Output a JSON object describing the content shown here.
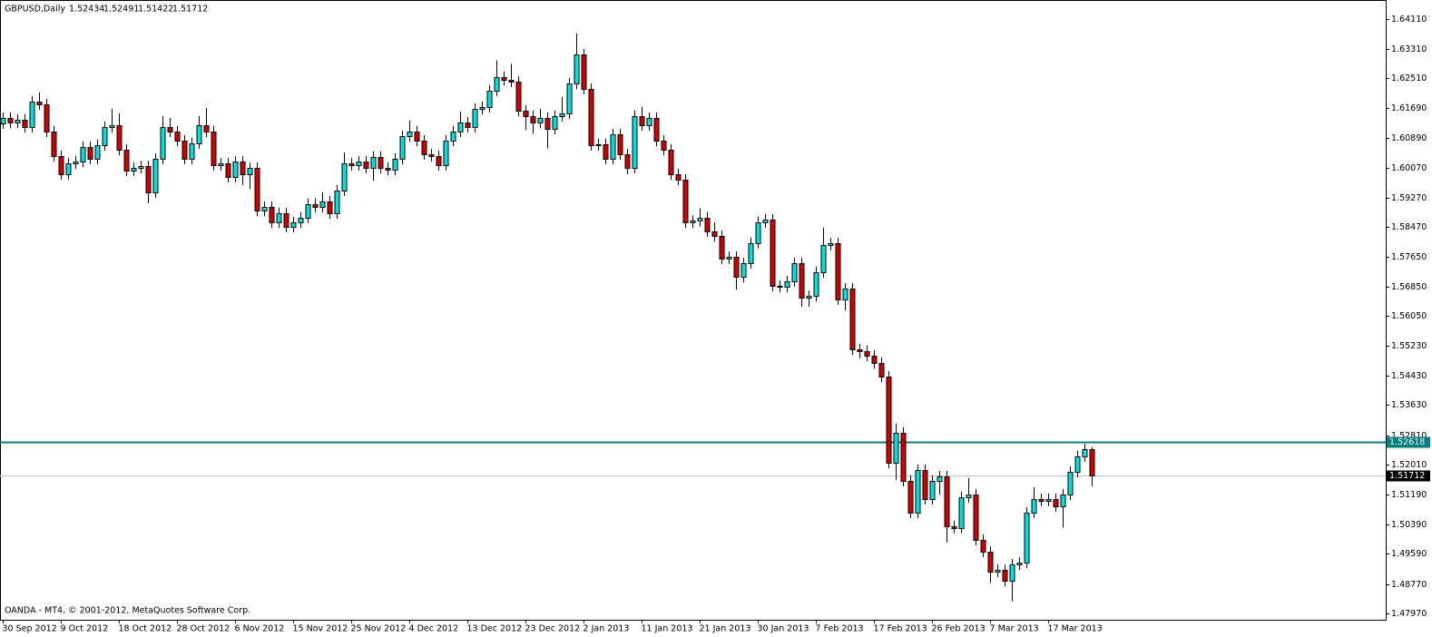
{
  "chart_data": {
    "type": "candlestick",
    "title": "GBPUSD,Daily",
    "watermark": "OANDA - MT4, © 2001-2012, MetaQuotes Software Corp.",
    "up_color": "#00e0e0",
    "down_color": "#d40000",
    "ylim": [
      1.478,
      1.6463
    ],
    "yticks": [
      {
        "value": 1.6411,
        "label": "1.64110"
      },
      {
        "value": 1.6331,
        "label": "1.63310"
      },
      {
        "value": 1.6251,
        "label": "1.62510"
      },
      {
        "value": 1.6169,
        "label": "1.61690"
      },
      {
        "value": 1.6089,
        "label": "1.60890"
      },
      {
        "value": 1.6007,
        "label": "1.60070"
      },
      {
        "value": 1.5927,
        "label": "1.59270"
      },
      {
        "value": 1.5847,
        "label": "1.58470"
      },
      {
        "value": 1.5765,
        "label": "1.57650"
      },
      {
        "value": 1.5685,
        "label": "1.56850"
      },
      {
        "value": 1.5605,
        "label": "1.56050"
      },
      {
        "value": 1.5523,
        "label": "1.55230"
      },
      {
        "value": 1.5443,
        "label": "1.54430"
      },
      {
        "value": 1.5363,
        "label": "1.53630"
      },
      {
        "value": 1.5281,
        "label": "1.52810"
      },
      {
        "value": 1.5201,
        "label": "1.52010"
      },
      {
        "value": 1.5119,
        "label": "1.51190"
      },
      {
        "value": 1.5039,
        "label": "1.50390"
      },
      {
        "value": 1.4959,
        "label": "1.49590"
      },
      {
        "value": 1.4877,
        "label": "1.48770"
      },
      {
        "value": 1.4797,
        "label": "1.47970"
      }
    ],
    "level": {
      "value": 1.52618,
      "color": "#008080"
    },
    "categories": [
      "30 Sep 2012",
      null,
      null,
      null,
      null,
      null,
      null,
      null,
      "9 Oct 2012",
      null,
      null,
      null,
      null,
      null,
      null,
      null,
      "18 Oct 2012",
      null,
      null,
      null,
      null,
      null,
      null,
      null,
      "28 Oct 2012",
      null,
      null,
      null,
      null,
      null,
      null,
      null,
      "6 Nov 2012",
      null,
      null,
      null,
      null,
      null,
      null,
      null,
      "15 Nov 2012",
      null,
      null,
      null,
      null,
      null,
      null,
      null,
      "25 Nov 2012",
      null,
      null,
      null,
      null,
      null,
      null,
      null,
      "4 Dec 2012",
      null,
      null,
      null,
      null,
      null,
      null,
      null,
      "13 Dec 2012",
      null,
      null,
      null,
      null,
      null,
      null,
      null,
      "23 Dec 2012",
      null,
      null,
      null,
      null,
      null,
      null,
      null,
      "2 Jan 2013",
      null,
      null,
      null,
      null,
      null,
      null,
      null,
      "11 Jan 2013",
      null,
      null,
      null,
      null,
      null,
      null,
      null,
      "21 Jan 2013",
      null,
      null,
      null,
      null,
      null,
      null,
      null,
      "30 Jan 2013",
      null,
      null,
      null,
      null,
      null,
      null,
      null,
      "7 Feb 2013",
      null,
      null,
      null,
      null,
      null,
      null,
      null,
      "17 Feb 2013",
      null,
      null,
      null,
      null,
      null,
      null,
      null,
      "26 Feb 2013",
      null,
      null,
      null,
      null,
      null,
      null,
      null,
      "7 Mar 2013",
      null,
      null,
      null,
      null,
      null,
      null,
      null,
      "17 Mar 2013",
      null,
      null,
      null,
      null,
      null,
      null
    ],
    "ohlc": [
      [
        1.6128,
        1.6158,
        1.6113,
        1.6143
      ],
      [
        1.6143,
        1.6158,
        1.6115,
        1.613
      ],
      [
        1.613,
        1.6153,
        1.6115,
        1.6138
      ],
      [
        1.6138,
        1.6153,
        1.6103,
        1.6118
      ],
      [
        1.6118,
        1.6202,
        1.6103,
        1.6187
      ],
      [
        1.6187,
        1.6212,
        1.6165,
        1.618
      ],
      [
        1.618,
        1.6195,
        1.6091,
        1.6106
      ],
      [
        1.6106,
        1.6121,
        1.6024,
        1.6039
      ],
      [
        1.6039,
        1.6054,
        1.5975,
        1.599
      ],
      [
        1.599,
        1.6034,
        1.5975,
        1.6019
      ],
      [
        1.6019,
        1.6039,
        1.6004,
        1.6024
      ],
      [
        1.6024,
        1.6079,
        1.6009,
        1.6064
      ],
      [
        1.6064,
        1.6079,
        1.6017,
        1.6032
      ],
      [
        1.6032,
        1.6084,
        1.6017,
        1.6069
      ],
      [
        1.6069,
        1.6133,
        1.6054,
        1.6118
      ],
      [
        1.6118,
        1.6168,
        1.6103,
        1.6123
      ],
      [
        1.6123,
        1.6155,
        1.6041,
        1.6056
      ],
      [
        1.6056,
        1.6071,
        1.5985,
        1.6
      ],
      [
        1.6,
        1.6022,
        1.5985,
        1.6007
      ],
      [
        1.6007,
        1.6026,
        1.5992,
        1.6011
      ],
      [
        1.6011,
        1.6026,
        1.5911,
        1.5941
      ],
      [
        1.5941,
        1.6047,
        1.5926,
        1.6032
      ],
      [
        1.6032,
        1.6148,
        1.6017,
        1.6118
      ],
      [
        1.6118,
        1.6143,
        1.6091,
        1.6106
      ],
      [
        1.6106,
        1.6121,
        1.6066,
        1.6081
      ],
      [
        1.6081,
        1.6096,
        1.6017,
        1.6032
      ],
      [
        1.6032,
        1.6089,
        1.6017,
        1.6074
      ],
      [
        1.6074,
        1.6148,
        1.6059,
        1.6123
      ],
      [
        1.6123,
        1.617,
        1.6091,
        1.6106
      ],
      [
        1.6106,
        1.6121,
        1.6,
        1.6015
      ],
      [
        1.6015,
        1.6034,
        1.6,
        1.6019
      ],
      [
        1.6019,
        1.6034,
        1.5968,
        1.5983
      ],
      [
        1.5983,
        1.6039,
        1.5968,
        1.6024
      ],
      [
        1.6024,
        1.6039,
        1.596,
        1.599
      ],
      [
        1.599,
        1.6022,
        1.595,
        1.6007
      ],
      [
        1.6007,
        1.6022,
        1.5876,
        1.5891
      ],
      [
        1.5891,
        1.5916,
        1.5876,
        1.5901
      ],
      [
        1.5901,
        1.5916,
        1.5844,
        1.5859
      ],
      [
        1.5859,
        1.5899,
        1.5844,
        1.5884
      ],
      [
        1.5884,
        1.5899,
        1.5832,
        1.5847
      ],
      [
        1.5847,
        1.5874,
        1.5832,
        1.5859
      ],
      [
        1.5859,
        1.5887,
        1.5844,
        1.5872
      ],
      [
        1.5872,
        1.5924,
        1.5857,
        1.5909
      ],
      [
        1.5909,
        1.5924,
        1.5886,
        1.5901
      ],
      [
        1.5901,
        1.5941,
        1.5886,
        1.5916
      ],
      [
        1.5916,
        1.5931,
        1.5869,
        1.5884
      ],
      [
        1.5884,
        1.5961,
        1.5869,
        1.5946
      ],
      [
        1.5946,
        1.6049,
        1.5931,
        1.6019
      ],
      [
        1.6019,
        1.6034,
        1.6,
        1.6015
      ],
      [
        1.6015,
        1.6039,
        1.6,
        1.6024
      ],
      [
        1.6024,
        1.6039,
        1.5992,
        1.6007
      ],
      [
        1.6007,
        1.6052,
        1.5972,
        1.6037
      ],
      [
        1.6037,
        1.6052,
        1.5992,
        1.6007
      ],
      [
        1.6007,
        1.6022,
        1.5987,
        1.6002
      ],
      [
        1.6002,
        1.6047,
        1.5987,
        1.6032
      ],
      [
        1.6032,
        1.6108,
        1.6017,
        1.6093
      ],
      [
        1.6093,
        1.6136,
        1.6078,
        1.6106
      ],
      [
        1.6106,
        1.6121,
        1.6066,
        1.6081
      ],
      [
        1.6081,
        1.6096,
        1.6029,
        1.6044
      ],
      [
        1.6044,
        1.6059,
        1.6024,
        1.6039
      ],
      [
        1.6039,
        1.6054,
        1.6,
        1.6015
      ],
      [
        1.6015,
        1.6096,
        1.6,
        1.6081
      ],
      [
        1.6081,
        1.6121,
        1.6066,
        1.6106
      ],
      [
        1.6106,
        1.616,
        1.6091,
        1.613
      ],
      [
        1.613,
        1.6145,
        1.6103,
        1.6118
      ],
      [
        1.6118,
        1.6182,
        1.6103,
        1.6167
      ],
      [
        1.6167,
        1.6187,
        1.6152,
        1.6172
      ],
      [
        1.6172,
        1.6232,
        1.6157,
        1.6217
      ],
      [
        1.6217,
        1.6299,
        1.6202,
        1.6254
      ],
      [
        1.6254,
        1.6269,
        1.6231,
        1.6246
      ],
      [
        1.6246,
        1.629,
        1.6226,
        1.6241
      ],
      [
        1.6241,
        1.6256,
        1.6147,
        1.6162
      ],
      [
        1.6162,
        1.6177,
        1.611,
        1.6148
      ],
      [
        1.6148,
        1.6163,
        1.61,
        1.613
      ],
      [
        1.613,
        1.6168,
        1.6115,
        1.6143
      ],
      [
        1.6143,
        1.6158,
        1.606,
        1.6113
      ],
      [
        1.6113,
        1.6163,
        1.6098,
        1.6148
      ],
      [
        1.6148,
        1.62,
        1.6133,
        1.6155
      ],
      [
        1.6155,
        1.6251,
        1.614,
        1.6236
      ],
      [
        1.6236,
        1.6372,
        1.6221,
        1.6315
      ],
      [
        1.6315,
        1.633,
        1.6207,
        1.6222
      ],
      [
        1.6222,
        1.6237,
        1.6054,
        1.6069
      ],
      [
        1.6069,
        1.6087,
        1.6054,
        1.6072
      ],
      [
        1.6072,
        1.6087,
        1.6017,
        1.6032
      ],
      [
        1.6032,
        1.6113,
        1.6017,
        1.6098
      ],
      [
        1.6098,
        1.6113,
        1.6029,
        1.6044
      ],
      [
        1.6044,
        1.6059,
        1.599,
        1.6007
      ],
      [
        1.6007,
        1.6163,
        1.5992,
        1.6148
      ],
      [
        1.6148,
        1.6173,
        1.6108,
        1.6123
      ],
      [
        1.6123,
        1.6158,
        1.6108,
        1.6143
      ],
      [
        1.6143,
        1.6158,
        1.6066,
        1.6081
      ],
      [
        1.6081,
        1.6096,
        1.6041,
        1.6056
      ],
      [
        1.6056,
        1.6071,
        1.5975,
        1.599
      ],
      [
        1.599,
        1.6005,
        1.596,
        1.5975
      ],
      [
        1.5975,
        1.599,
        1.5844,
        1.5859
      ],
      [
        1.5859,
        1.5878,
        1.5844,
        1.5863
      ],
      [
        1.5863,
        1.5897,
        1.5848,
        1.5872
      ],
      [
        1.5872,
        1.5887,
        1.582,
        1.5835
      ],
      [
        1.5835,
        1.586,
        1.5807,
        1.5822
      ],
      [
        1.5822,
        1.5837,
        1.5746,
        1.5761
      ],
      [
        1.5761,
        1.578,
        1.5746,
        1.5765
      ],
      [
        1.5765,
        1.578,
        1.5676,
        1.5711
      ],
      [
        1.5711,
        1.5763,
        1.5696,
        1.5748
      ],
      [
        1.5748,
        1.5818,
        1.5733,
        1.5803
      ],
      [
        1.5803,
        1.5874,
        1.5788,
        1.5859
      ],
      [
        1.5859,
        1.5882,
        1.5844,
        1.5867
      ],
      [
        1.5867,
        1.5882,
        1.5672,
        1.5687
      ],
      [
        1.5687,
        1.5702,
        1.5669,
        1.5684
      ],
      [
        1.5684,
        1.5714,
        1.5669,
        1.5699
      ],
      [
        1.5699,
        1.5763,
        1.5684,
        1.5748
      ],
      [
        1.5748,
        1.5763,
        1.563,
        1.5655
      ],
      [
        1.5655,
        1.5674,
        1.563,
        1.5659
      ],
      [
        1.5659,
        1.5739,
        1.5644,
        1.5724
      ],
      [
        1.5724,
        1.5845,
        1.5709,
        1.5798
      ],
      [
        1.5798,
        1.5817,
        1.5783,
        1.5802
      ],
      [
        1.5802,
        1.5817,
        1.5635,
        1.565
      ],
      [
        1.565,
        1.5694,
        1.562,
        1.5679
      ],
      [
        1.5679,
        1.5694,
        1.5499,
        1.5514
      ],
      [
        1.5514,
        1.5529,
        1.549,
        1.551
      ],
      [
        1.551,
        1.5525,
        1.5482,
        1.5497
      ],
      [
        1.5497,
        1.5512,
        1.5462,
        1.5477
      ],
      [
        1.5477,
        1.5492,
        1.5425,
        1.544
      ],
      [
        1.544,
        1.5455,
        1.5191,
        1.5206
      ],
      [
        1.5206,
        1.5313,
        1.516,
        1.5288
      ],
      [
        1.5288,
        1.5303,
        1.5142,
        1.5157
      ],
      [
        1.5157,
        1.5172,
        1.5056,
        1.5071
      ],
      [
        1.5071,
        1.5202,
        1.5056,
        1.5187
      ],
      [
        1.5187,
        1.5202,
        1.5093,
        1.5108
      ],
      [
        1.5108,
        1.5172,
        1.5093,
        1.5157
      ],
      [
        1.5157,
        1.5184,
        1.512,
        1.5169
      ],
      [
        1.5169,
        1.5184,
        1.499,
        1.5034
      ],
      [
        1.5034,
        1.5049,
        1.5015,
        1.503
      ],
      [
        1.503,
        1.5128,
        1.5015,
        1.5113
      ],
      [
        1.5113,
        1.5165,
        1.5098,
        1.512
      ],
      [
        1.512,
        1.5135,
        1.4982,
        1.4997
      ],
      [
        1.4997,
        1.5012,
        1.495,
        1.4965
      ],
      [
        1.4965,
        1.498,
        1.488,
        1.4911
      ],
      [
        1.4911,
        1.493,
        1.4896,
        1.4915
      ],
      [
        1.4915,
        1.493,
        1.4871,
        1.4886
      ],
      [
        1.4886,
        1.4945,
        1.483,
        1.493
      ],
      [
        1.493,
        1.495,
        1.4915,
        1.4935
      ],
      [
        1.4935,
        1.5086,
        1.492,
        1.5071
      ],
      [
        1.5071,
        1.514,
        1.5056,
        1.5108
      ],
      [
        1.5108,
        1.5123,
        1.5088,
        1.5103
      ],
      [
        1.5103,
        1.5123,
        1.5088,
        1.5108
      ],
      [
        1.5108,
        1.5123,
        1.5073,
        1.5088
      ],
      [
        1.5088,
        1.5135,
        1.503,
        1.512
      ],
      [
        1.512,
        1.5197,
        1.5105,
        1.5182
      ],
      [
        1.5182,
        1.5239,
        1.5167,
        1.5224
      ],
      [
        1.5224,
        1.5258,
        1.5209,
        1.5243
      ],
      [
        1.52434,
        1.52491,
        1.51422,
        1.51712
      ]
    ]
  }
}
